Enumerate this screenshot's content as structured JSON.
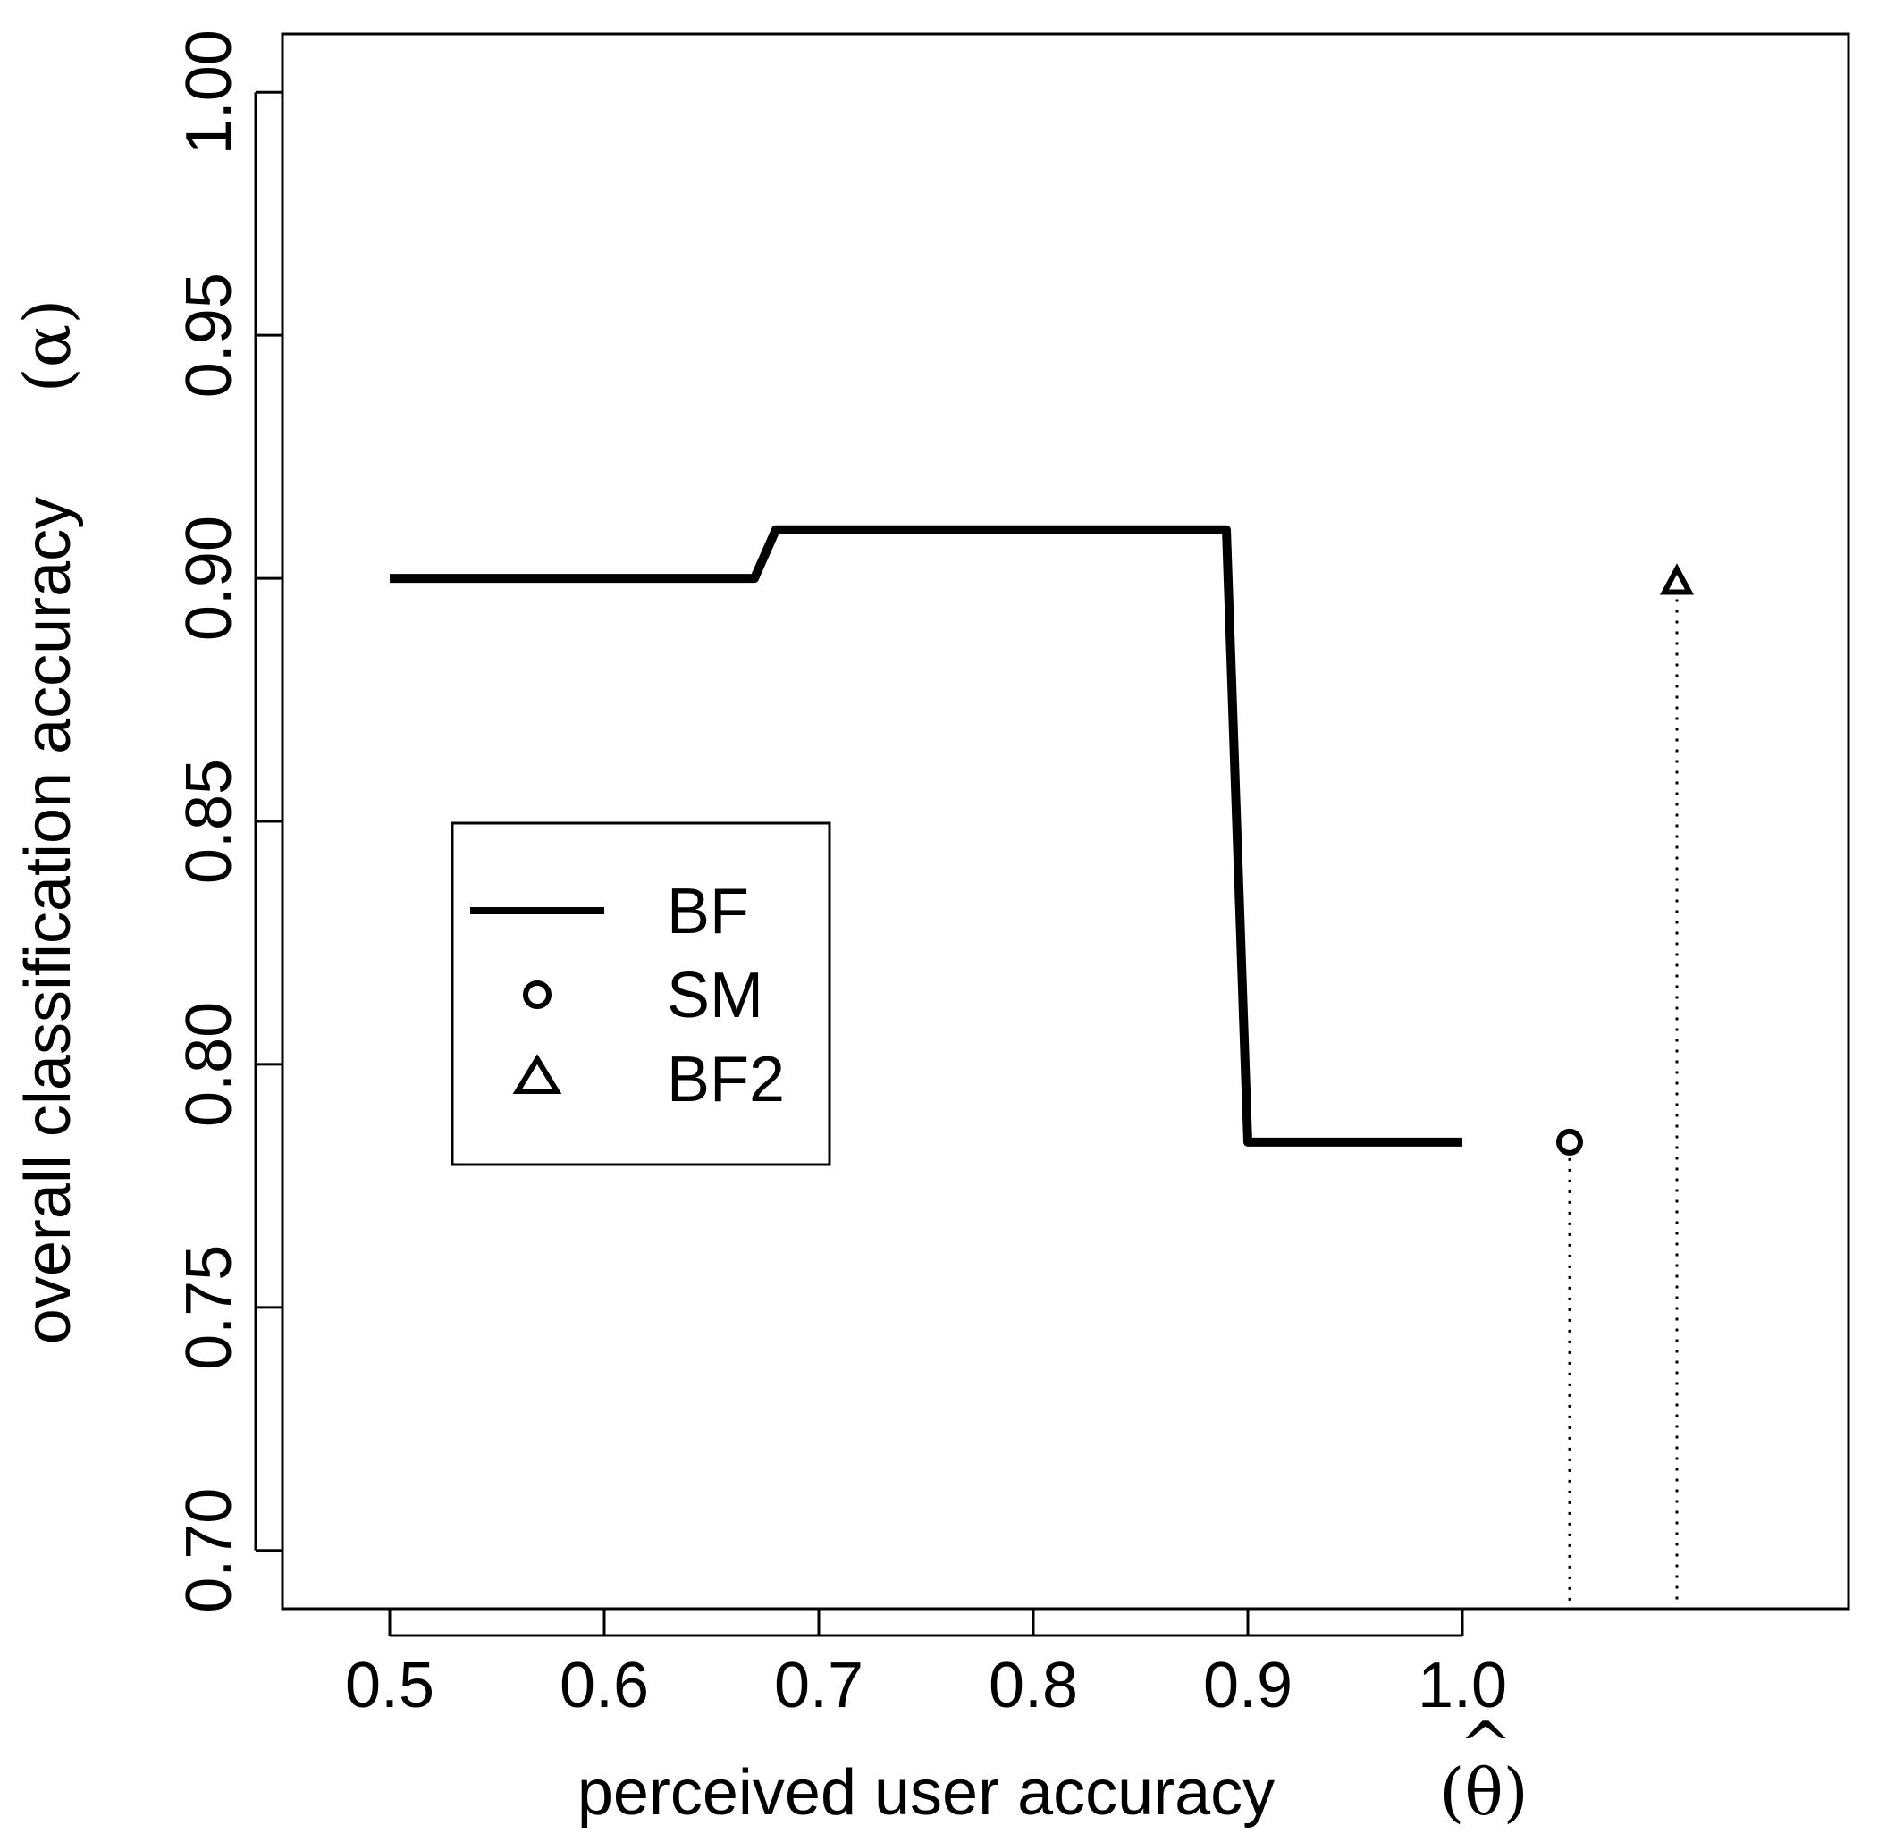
{
  "chart_data": {
    "type": "line",
    "title": "",
    "xlabel": {
      "text": "perceived user accuracy",
      "symbol": "(θ)",
      "hat": "^"
    },
    "ylabel": {
      "text": "overall classification accuracy",
      "symbol": "(α)"
    },
    "xlim": [
      0.45,
      1.18
    ],
    "ylim": [
      0.688,
      1.012
    ],
    "x_ticks": [
      0.5,
      0.6,
      0.7,
      0.8,
      0.9,
      1.0
    ],
    "x_tick_labels": [
      "0.5",
      "0.6",
      "0.7",
      "0.8",
      "0.9",
      "1.0"
    ],
    "y_ticks": [
      0.7,
      0.75,
      0.8,
      0.85,
      0.9,
      0.95,
      1.0
    ],
    "y_tick_labels": [
      "0.70",
      "0.75",
      "0.80",
      "0.85",
      "0.90",
      "0.95",
      "1.00"
    ],
    "grid": false,
    "legend_position": "center-left",
    "series": [
      {
        "name": "BF",
        "kind": "line",
        "x": [
          0.5,
          0.67,
          0.68,
          0.89,
          0.9,
          1.0
        ],
        "y": [
          0.9,
          0.9,
          0.91,
          0.91,
          0.784,
          0.784
        ]
      },
      {
        "name": "SM",
        "kind": "point",
        "marker": "circle",
        "x": [
          1.05
        ],
        "y": [
          0.784
        ]
      },
      {
        "name": "BF2",
        "kind": "point",
        "marker": "triangle",
        "x": [
          1.1
        ],
        "y": [
          0.899
        ]
      }
    ],
    "colors": {
      "line": "#000000",
      "background": "#ffffff"
    }
  }
}
